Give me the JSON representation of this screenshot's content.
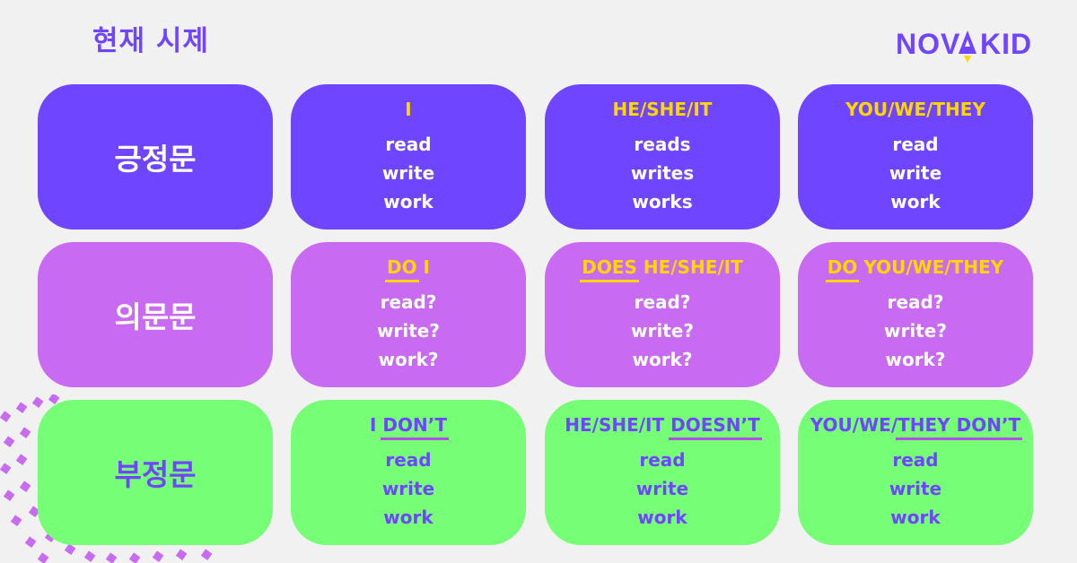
{
  "title": "현재 시제",
  "logo": {
    "text": "NOVAKID",
    "icon": "rocket-icon"
  },
  "colors": {
    "background": "#f1f1f1",
    "purple": "#6f45ff",
    "violet": "#c86af2",
    "green": "#76fe76",
    "yellow": "#ffd600",
    "underline_negative": "#b24ee6"
  },
  "rows": [
    {
      "label": "긍정문",
      "cells": [
        {
          "pre": "",
          "marked": "",
          "post": "I",
          "verbs": [
            "read",
            "write",
            "work"
          ]
        },
        {
          "pre": "",
          "marked": "",
          "post": "HE/SHE/IT",
          "verbs": [
            "reads",
            "writes",
            "works"
          ]
        },
        {
          "pre": "",
          "marked": "",
          "post": "YOU/WE/THEY",
          "verbs": [
            "read",
            "write",
            "work"
          ]
        }
      ]
    },
    {
      "label": "의문문",
      "cells": [
        {
          "pre": "",
          "marked": "DO",
          "post": " I",
          "verbs": [
            "read?",
            "write?",
            "work?"
          ]
        },
        {
          "pre": "",
          "marked": "DOES",
          "post": " HE/SHE/IT",
          "verbs": [
            "read?",
            "write?",
            "work?"
          ]
        },
        {
          "pre": "",
          "marked": "DO",
          "post": " YOU/WE/THEY",
          "verbs": [
            "read?",
            "write?",
            "work?"
          ]
        }
      ]
    },
    {
      "label": "부정문",
      "cells": [
        {
          "pre": "I ",
          "marked": "DON’T",
          "post": "",
          "verbs": [
            "read",
            "write",
            "work"
          ]
        },
        {
          "pre": "HE/SHE/IT ",
          "marked": "DOESN’T",
          "post": "",
          "verbs": [
            "read",
            "write",
            "work"
          ]
        },
        {
          "pre": "YOU/WE/",
          "marked": "THEY DON’T",
          "post": "",
          "verbs": [
            "read",
            "write",
            "work"
          ]
        }
      ]
    }
  ]
}
